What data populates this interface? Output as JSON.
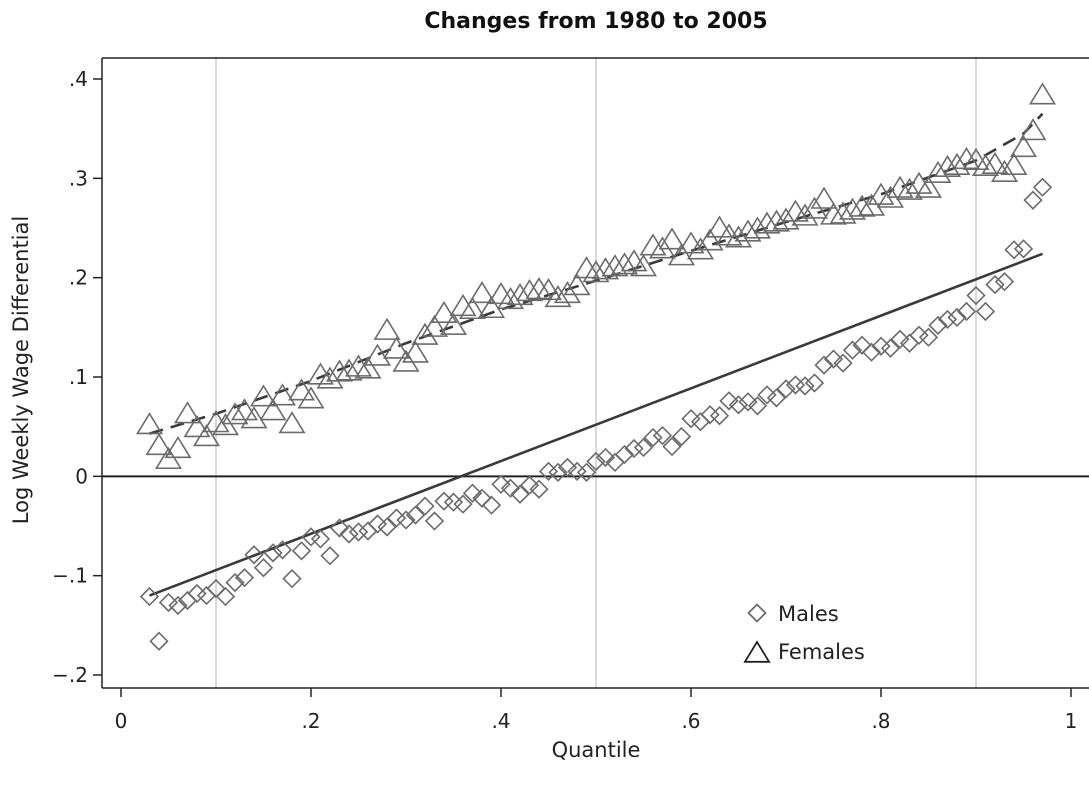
{
  "chart_data": {
    "type": "scatter",
    "title": "Changes from 1980 to 2005",
    "xlabel": "Quantile",
    "ylabel": "Log Weekly Wage Differential",
    "xlim": [
      0,
      1
    ],
    "ylim": [
      -0.2,
      0.4
    ],
    "xticks": [
      0,
      0.2,
      0.4,
      0.6,
      0.8,
      1
    ],
    "xtick_labels": [
      "0",
      ".2",
      ".4",
      ".6",
      ".8",
      "1"
    ],
    "yticks": [
      -0.2,
      -0.1,
      0,
      0.1,
      0.2,
      0.3,
      0.4
    ],
    "ytick_labels": [
      "-.2",
      "-.1",
      "0",
      ".1",
      ".2",
      ".3",
      ".4"
    ],
    "reference_vlines": [
      0.1,
      0.5,
      0.9
    ],
    "reference_hline": 0,
    "grid": false,
    "legend_position": "bottom-right",
    "colors": {
      "markers": "#6b6b6b",
      "fit_lines": "#3a3a3a",
      "reference_lines": "#d9d9d9",
      "axes": "#222222"
    },
    "series": [
      {
        "name": "Males",
        "marker": "diamond",
        "x": [
          0.03,
          0.04,
          0.05,
          0.06,
          0.07,
          0.08,
          0.09,
          0.1,
          0.11,
          0.12,
          0.13,
          0.14,
          0.15,
          0.16,
          0.17,
          0.18,
          0.19,
          0.2,
          0.21,
          0.22,
          0.23,
          0.24,
          0.25,
          0.26,
          0.27,
          0.28,
          0.29,
          0.3,
          0.31,
          0.32,
          0.33,
          0.34,
          0.35,
          0.36,
          0.37,
          0.38,
          0.39,
          0.4,
          0.41,
          0.42,
          0.43,
          0.44,
          0.45,
          0.46,
          0.47,
          0.48,
          0.49,
          0.5,
          0.51,
          0.52,
          0.53,
          0.54,
          0.55,
          0.56,
          0.57,
          0.58,
          0.59,
          0.6,
          0.61,
          0.62,
          0.63,
          0.64,
          0.65,
          0.66,
          0.67,
          0.68,
          0.69,
          0.7,
          0.71,
          0.72,
          0.73,
          0.74,
          0.75,
          0.76,
          0.77,
          0.78,
          0.79,
          0.8,
          0.81,
          0.82,
          0.83,
          0.84,
          0.85,
          0.86,
          0.87,
          0.88,
          0.89,
          0.9,
          0.91,
          0.92,
          0.93,
          0.94,
          0.95,
          0.96,
          0.97
        ],
        "values": [
          -0.121,
          -0.166,
          -0.127,
          -0.13,
          -0.125,
          -0.118,
          -0.12,
          -0.113,
          -0.121,
          -0.107,
          -0.102,
          -0.079,
          -0.092,
          -0.077,
          -0.074,
          -0.103,
          -0.075,
          -0.061,
          -0.063,
          -0.08,
          -0.052,
          -0.058,
          -0.056,
          -0.055,
          -0.048,
          -0.051,
          -0.042,
          -0.044,
          -0.039,
          -0.03,
          -0.045,
          -0.025,
          -0.026,
          -0.028,
          -0.017,
          -0.022,
          -0.029,
          -0.008,
          -0.012,
          -0.018,
          -0.009,
          -0.013,
          0.005,
          0.004,
          0.009,
          0.005,
          0.004,
          0.015,
          0.019,
          0.014,
          0.022,
          0.028,
          0.029,
          0.039,
          0.041,
          0.03,
          0.04,
          0.058,
          0.055,
          0.062,
          0.061,
          0.076,
          0.072,
          0.075,
          0.071,
          0.082,
          0.079,
          0.088,
          0.092,
          0.091,
          0.094,
          0.112,
          0.118,
          0.114,
          0.127,
          0.132,
          0.125,
          0.131,
          0.129,
          0.138,
          0.134,
          0.142,
          0.14,
          0.152,
          0.158,
          0.16,
          0.166,
          0.182,
          0.166,
          0.193,
          0.196,
          0.228,
          0.229,
          0.278,
          0.291
        ]
      },
      {
        "name": "Females",
        "marker": "triangle",
        "x": [
          0.03,
          0.04,
          0.05,
          0.06,
          0.07,
          0.08,
          0.09,
          0.1,
          0.11,
          0.12,
          0.13,
          0.14,
          0.15,
          0.16,
          0.17,
          0.18,
          0.19,
          0.2,
          0.21,
          0.22,
          0.23,
          0.24,
          0.25,
          0.26,
          0.27,
          0.28,
          0.29,
          0.3,
          0.31,
          0.32,
          0.33,
          0.34,
          0.35,
          0.36,
          0.37,
          0.38,
          0.39,
          0.4,
          0.41,
          0.42,
          0.43,
          0.44,
          0.45,
          0.46,
          0.47,
          0.48,
          0.49,
          0.5,
          0.51,
          0.52,
          0.53,
          0.54,
          0.55,
          0.56,
          0.57,
          0.58,
          0.59,
          0.6,
          0.61,
          0.62,
          0.63,
          0.64,
          0.65,
          0.66,
          0.67,
          0.68,
          0.69,
          0.7,
          0.71,
          0.72,
          0.73,
          0.74,
          0.75,
          0.76,
          0.77,
          0.78,
          0.79,
          0.8,
          0.81,
          0.82,
          0.83,
          0.84,
          0.85,
          0.86,
          0.87,
          0.88,
          0.89,
          0.9,
          0.91,
          0.92,
          0.93,
          0.94,
          0.95,
          0.96,
          0.97
        ],
        "values": [
          0.052,
          0.031,
          0.017,
          0.028,
          0.063,
          0.049,
          0.04,
          0.054,
          0.051,
          0.062,
          0.066,
          0.058,
          0.08,
          0.066,
          0.081,
          0.053,
          0.086,
          0.078,
          0.102,
          0.098,
          0.105,
          0.106,
          0.11,
          0.108,
          0.121,
          0.147,
          0.128,
          0.115,
          0.124,
          0.142,
          0.15,
          0.164,
          0.152,
          0.171,
          0.168,
          0.184,
          0.169,
          0.183,
          0.178,
          0.182,
          0.186,
          0.188,
          0.187,
          0.18,
          0.184,
          0.192,
          0.209,
          0.205,
          0.208,
          0.211,
          0.213,
          0.216,
          0.211,
          0.232,
          0.229,
          0.238,
          0.222,
          0.234,
          0.228,
          0.237,
          0.25,
          0.242,
          0.24,
          0.246,
          0.249,
          0.254,
          0.256,
          0.258,
          0.266,
          0.262,
          0.269,
          0.279,
          0.263,
          0.264,
          0.268,
          0.271,
          0.272,
          0.283,
          0.28,
          0.29,
          0.288,
          0.294,
          0.29,
          0.305,
          0.311,
          0.313,
          0.319,
          0.318,
          0.312,
          0.314,
          0.306,
          0.313,
          0.331,
          0.348,
          0.384
        ]
      }
    ],
    "fit_lines": [
      {
        "series": "Males",
        "style": "solid",
        "x": [
          0.03,
          0.97
        ],
        "y": [
          -0.12,
          0.224
        ]
      },
      {
        "series": "Females",
        "style": "dashed",
        "x": [
          0.03,
          0.1,
          0.2,
          0.3,
          0.4,
          0.5,
          0.6,
          0.7,
          0.8,
          0.9,
          0.95,
          0.97
        ],
        "y": [
          0.043,
          0.063,
          0.096,
          0.134,
          0.168,
          0.197,
          0.227,
          0.256,
          0.284,
          0.318,
          0.345,
          0.365
        ]
      }
    ]
  }
}
